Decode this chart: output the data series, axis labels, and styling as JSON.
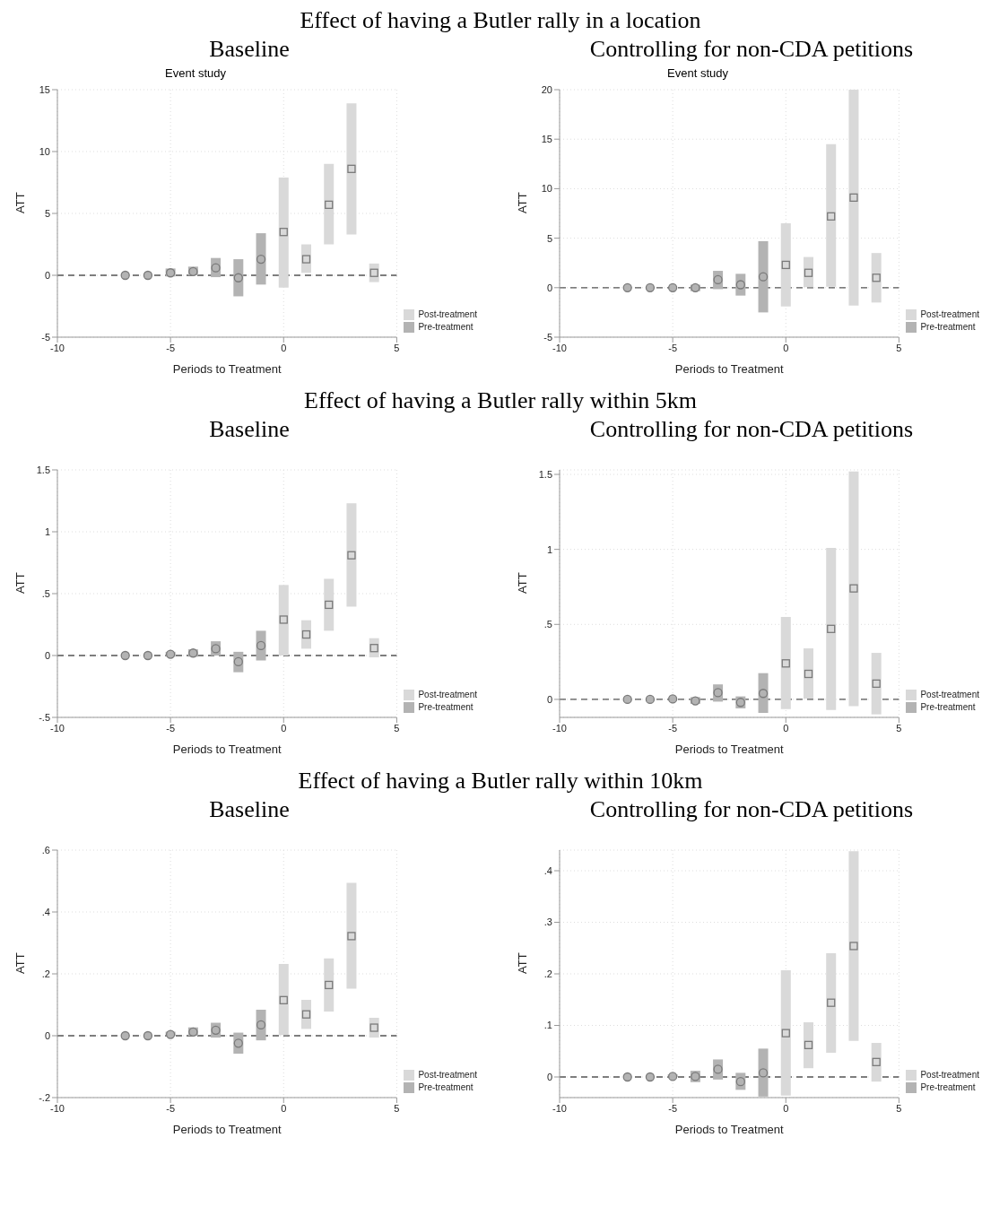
{
  "chart_data": [
    {
      "type": "scatter",
      "title": "Baseline",
      "subtitle": "Event study",
      "annotations": [
        "Effect of having a Butler rally in a location"
      ],
      "xlabel": "Periods to Treatment",
      "ylabel": "ATT",
      "xlim": [
        -10,
        5
      ],
      "xticks": [
        -10,
        -5,
        0,
        5
      ],
      "ylim": [
        -5,
        15
      ],
      "yticks": [
        -5,
        0,
        5,
        10,
        15
      ],
      "grid": true,
      "legend": "bottom right",
      "ref_lines": [
        {
          "axis": "y",
          "value": 0,
          "line_style": "dashed",
          "color": "#555555"
        }
      ],
      "series": [
        {
          "name": "Pre-treatment",
          "color": "#b3b3b3",
          "marker": "circle",
          "x": [
            -7,
            -6,
            -5,
            -4,
            -3,
            -2,
            -1
          ],
          "values": [
            0,
            0,
            0.2,
            0.3,
            0.6,
            -0.2,
            1.3
          ],
          "errors": [
            null,
            null,
            [
              -0.1,
              0.55
            ],
            [
              0,
              0.7
            ],
            [
              -0.15,
              1.4
            ],
            [
              -1.7,
              1.3
            ],
            [
              -0.75,
              3.4
            ]
          ]
        },
        {
          "name": "Post-treatment",
          "color": "#d9d9d9",
          "marker": "square",
          "x": [
            0,
            1,
            2,
            3,
            4
          ],
          "values": [
            3.5,
            1.3,
            5.7,
            8.6,
            0.2
          ],
          "errors": [
            [
              -1,
              7.9
            ],
            [
              0.2,
              2.5
            ],
            [
              2.5,
              9
            ],
            [
              3.3,
              13.9
            ],
            [
              -0.55,
              0.95
            ]
          ]
        }
      ]
    },
    {
      "type": "scatter",
      "title": "Controlling for non-CDA petitions",
      "subtitle": "Event study",
      "xlabel": "Periods to Treatment",
      "ylabel": "ATT",
      "xlim": [
        -10,
        5
      ],
      "xticks": [
        -10,
        -5,
        0,
        5
      ],
      "ylim": [
        -5,
        20
      ],
      "yticks": [
        -5,
        0,
        5,
        10,
        15,
        20
      ],
      "grid": true,
      "legend": "bottom right",
      "ref_lines": [
        {
          "axis": "y",
          "value": 0,
          "line_style": "dashed",
          "color": "#555555"
        }
      ],
      "series": [
        {
          "name": "Pre-treatment",
          "color": "#b3b3b3",
          "marker": "circle",
          "x": [
            -7,
            -6,
            -5,
            -4,
            -3,
            -2,
            -1
          ],
          "values": [
            0,
            0,
            0,
            0,
            0.8,
            0.3,
            1.1
          ],
          "errors": [
            null,
            null,
            null,
            [
              -0.35,
              0.3
            ],
            [
              -0.15,
              1.7
            ],
            [
              -0.8,
              1.4
            ],
            [
              -2.5,
              4.7
            ]
          ]
        },
        {
          "name": "Post-treatment",
          "color": "#d9d9d9",
          "marker": "square",
          "x": [
            0,
            1,
            2,
            3,
            4
          ],
          "values": [
            2.3,
            1.5,
            7.2,
            9.1,
            1
          ],
          "errors": [
            [
              -1.9,
              6.5
            ],
            [
              0.05,
              3.1
            ],
            [
              0.1,
              14.5
            ],
            [
              -1.8,
              20
            ],
            [
              -1.5,
              3.5
            ]
          ]
        }
      ]
    },
    {
      "type": "scatter",
      "title": "Baseline",
      "annotations": [
        "Effect of having a Butler rally within 5km"
      ],
      "xlabel": "Periods to Treatment",
      "ylabel": "ATT",
      "xlim": [
        -10,
        5
      ],
      "xticks": [
        -10,
        -5,
        0,
        5
      ],
      "ylim": [
        -0.5,
        1.5
      ],
      "yticks": [
        {
          "value": -0.5,
          "label": "-.5"
        },
        0,
        {
          "value": 0.5,
          "label": ".5"
        },
        1,
        1.5
      ],
      "grid": true,
      "legend": "bottom right",
      "ref_lines": [
        {
          "axis": "y",
          "value": 0,
          "line_style": "dashed",
          "color": "#555555"
        }
      ],
      "series": [
        {
          "name": "Pre-treatment",
          "color": "#b3b3b3",
          "marker": "circle",
          "x": [
            -7,
            -6,
            -5,
            -4,
            -3,
            -2,
            -1
          ],
          "values": [
            0,
            0,
            0.01,
            0.02,
            0.055,
            -0.05,
            0.08
          ],
          "errors": [
            null,
            null,
            [
              -0.01,
              0.03
            ],
            [
              -0.01,
              0.05
            ],
            [
              0,
              0.115
            ],
            [
              -0.135,
              0.03
            ],
            [
              -0.04,
              0.2
            ]
          ]
        },
        {
          "name": "Post-treatment",
          "color": "#d9d9d9",
          "marker": "square",
          "x": [
            0,
            1,
            2,
            3,
            4
          ],
          "values": [
            0.29,
            0.17,
            0.41,
            0.81,
            0.06
          ],
          "errors": [
            [
              0,
              0.57
            ],
            [
              0.055,
              0.285
            ],
            [
              0.2,
              0.62
            ],
            [
              0.395,
              1.23
            ],
            [
              -0.015,
              0.14
            ]
          ]
        }
      ]
    },
    {
      "type": "scatter",
      "title": "Controlling for non-CDA petitions",
      "xlabel": "Periods to Treatment",
      "ylabel": "ATT",
      "xlim": [
        -10,
        5
      ],
      "xticks": [
        -10,
        -5,
        0,
        5
      ],
      "ylim": [
        -0.12,
        1.53
      ],
      "yticks": [
        0,
        {
          "value": 0.5,
          "label": ".5"
        },
        1,
        1.5
      ],
      "grid": true,
      "legend": "bottom right",
      "ref_lines": [
        {
          "axis": "y",
          "value": 0,
          "line_style": "dashed",
          "color": "#555555"
        }
      ],
      "series": [
        {
          "name": "Pre-treatment",
          "color": "#b3b3b3",
          "marker": "circle",
          "x": [
            -7,
            -6,
            -5,
            -4,
            -3,
            -2,
            -1
          ],
          "values": [
            0,
            0,
            0.003,
            -0.01,
            0.045,
            -0.02,
            0.04
          ],
          "errors": [
            null,
            null,
            null,
            [
              -0.03,
              0.015
            ],
            [
              -0.015,
              0.1
            ],
            [
              -0.06,
              0.02
            ],
            [
              -0.09,
              0.175
            ]
          ]
        },
        {
          "name": "Post-treatment",
          "color": "#d9d9d9",
          "marker": "square",
          "x": [
            0,
            1,
            2,
            3,
            4
          ],
          "values": [
            0.24,
            0.17,
            0.47,
            0.74,
            0.105
          ],
          "errors": [
            [
              -0.065,
              0.55
            ],
            [
              0.005,
              0.34
            ],
            [
              -0.07,
              1.01
            ],
            [
              -0.045,
              1.52
            ],
            [
              -0.1,
              0.31
            ]
          ]
        }
      ]
    },
    {
      "type": "scatter",
      "title": "Baseline",
      "annotations": [
        "Effect of having a Butler rally within 10km"
      ],
      "xlabel": "Periods to Treatment",
      "ylabel": "ATT",
      "xlim": [
        -10,
        5
      ],
      "xticks": [
        -10,
        -5,
        0,
        5
      ],
      "ylim": [
        -0.2,
        0.6
      ],
      "yticks": [
        {
          "value": -0.2,
          "label": "-.2"
        },
        0,
        {
          "value": 0.2,
          "label": ".2"
        },
        {
          "value": 0.4,
          "label": ".4"
        },
        {
          "value": 0.6,
          "label": ".6"
        }
      ],
      "grid": true,
      "legend": "bottom right",
      "ref_lines": [
        {
          "axis": "y",
          "value": 0,
          "line_style": "dashed",
          "color": "#555555"
        }
      ],
      "series": [
        {
          "name": "Pre-treatment",
          "color": "#b3b3b3",
          "marker": "circle",
          "x": [
            -7,
            -6,
            -5,
            -4,
            -3,
            -2,
            -1
          ],
          "values": [
            0,
            0,
            0.004,
            0.012,
            0.018,
            -0.024,
            0.035
          ],
          "errors": [
            null,
            null,
            [
              0,
              0.013
            ],
            [
              0,
              0.027
            ],
            [
              -0.006,
              0.042
            ],
            [
              -0.058,
              0.01
            ],
            [
              -0.015,
              0.084
            ]
          ]
        },
        {
          "name": "Post-treatment",
          "color": "#d9d9d9",
          "marker": "square",
          "x": [
            0,
            1,
            2,
            3,
            4
          ],
          "values": [
            0.115,
            0.069,
            0.164,
            0.322,
            0.026
          ],
          "errors": [
            [
              0.002,
              0.232
            ],
            [
              0.022,
              0.116
            ],
            [
              0.078,
              0.25
            ],
            [
              0.152,
              0.494
            ],
            [
              -0.006,
              0.058
            ]
          ]
        }
      ]
    },
    {
      "type": "scatter",
      "title": "Controlling for non-CDA petitions",
      "xlabel": "Periods to Treatment",
      "ylabel": "ATT",
      "xlim": [
        -10,
        5
      ],
      "xticks": [
        -10,
        -5,
        0,
        5
      ],
      "ylim": [
        -0.04,
        0.44
      ],
      "yticks": [
        0,
        {
          "value": 0.1,
          "label": ".1"
        },
        {
          "value": 0.2,
          "label": ".2"
        },
        {
          "value": 0.3,
          "label": ".3"
        },
        {
          "value": 0.4,
          "label": ".4"
        }
      ],
      "grid": true,
      "legend": "bottom right",
      "ref_lines": [
        {
          "axis": "y",
          "value": 0,
          "line_style": "dashed",
          "color": "#555555"
        }
      ],
      "series": [
        {
          "name": "Pre-treatment",
          "color": "#b3b3b3",
          "marker": "circle",
          "x": [
            -7,
            -6,
            -5,
            -4,
            -3,
            -2,
            -1
          ],
          "values": [
            0,
            0,
            0.001,
            0.001,
            0.015,
            -0.009,
            0.008
          ],
          "errors": [
            null,
            null,
            [
              0,
              0.005
            ],
            [
              -0.01,
              0.012
            ],
            [
              -0.005,
              0.034
            ],
            [
              -0.025,
              0.008
            ],
            [
              -0.038,
              0.055
            ]
          ]
        },
        {
          "name": "Post-treatment",
          "color": "#d9d9d9",
          "marker": "square",
          "x": [
            0,
            1,
            2,
            3,
            4
          ],
          "values": [
            0.085,
            0.062,
            0.144,
            0.254,
            0.029
          ],
          "errors": [
            [
              -0.036,
              0.207
            ],
            [
              0.017,
              0.106
            ],
            [
              0.047,
              0.24
            ],
            [
              0.07,
              0.438
            ],
            [
              -0.009,
              0.066
            ]
          ]
        }
      ]
    }
  ]
}
